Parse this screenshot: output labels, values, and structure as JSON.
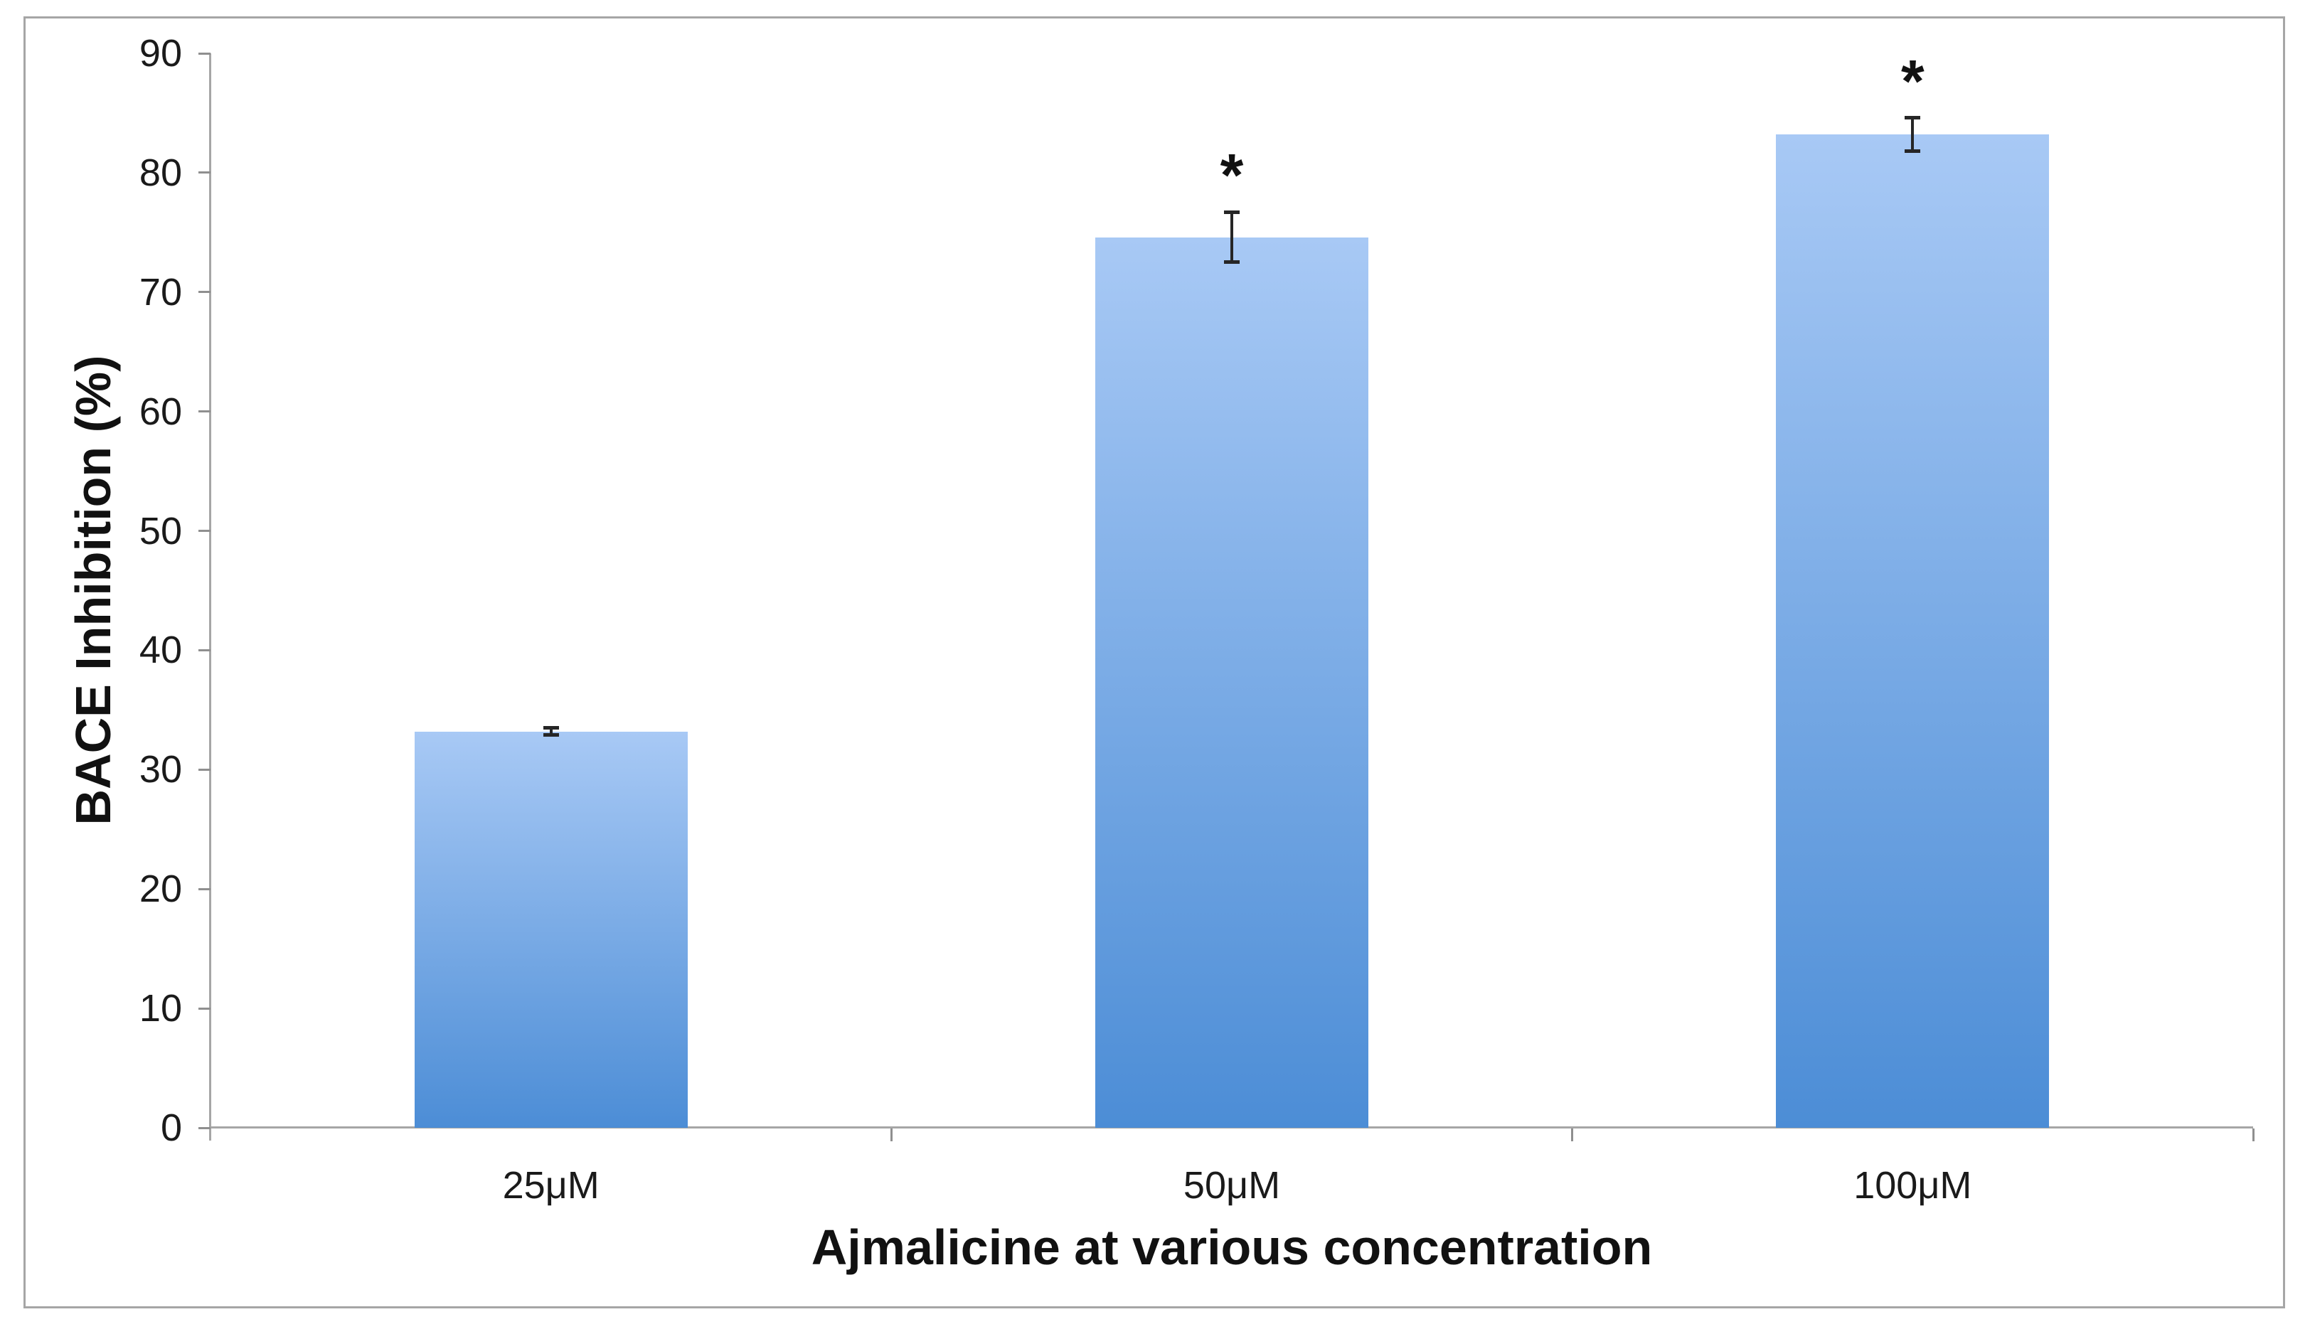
{
  "figure": {
    "border_color": "#a6a6a6",
    "background_color": "#ffffff",
    "axis_line_color": "#a6a6a6",
    "tick_color": "#8f8f8f",
    "text_color": "#1a1a1a",
    "error_bar_color": "#262626"
  },
  "chart_data": {
    "type": "bar",
    "title": "",
    "xlabel": "Ajmalicine at various concentration",
    "ylabel": "BACE Inhibition (%)",
    "categories": [
      "25μM",
      "50μM",
      "100μM"
    ],
    "values": [
      33.2,
      74.6,
      83.2
    ],
    "errors": [
      0.3,
      2.1,
      1.4
    ],
    "significance": [
      "",
      "*",
      "*"
    ],
    "ylim": [
      0,
      90
    ],
    "yticks": [
      0,
      10,
      20,
      30,
      40,
      50,
      60,
      70,
      80,
      90
    ],
    "grid": false,
    "legend": null,
    "bar_gradient_top": "#a8c9f5",
    "bar_gradient_bottom": "#4c8dd6"
  }
}
